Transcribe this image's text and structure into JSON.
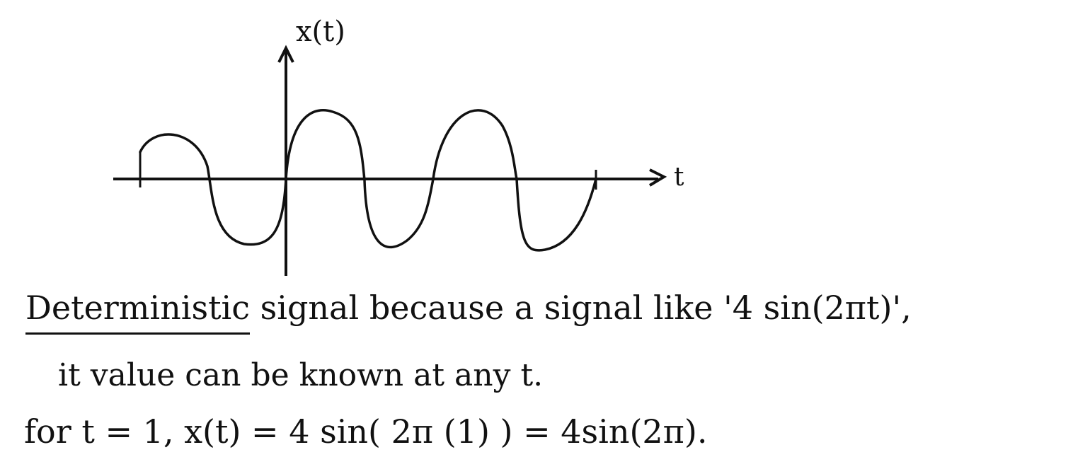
{
  "axes": {
    "y_label": "x(t)",
    "x_label": "t"
  },
  "text": {
    "line1_prefix": "Deterministic",
    "line1_rest": " signal because a signal like '4 sin(2πt)',",
    "line2": "it value can be known at any t.",
    "line3": "for t = 1,  x(t) = 4 sin( 2π (1) ) =  4sin(2π)."
  },
  "colors": {
    "ink": "#111111",
    "background": "#ffffff"
  }
}
